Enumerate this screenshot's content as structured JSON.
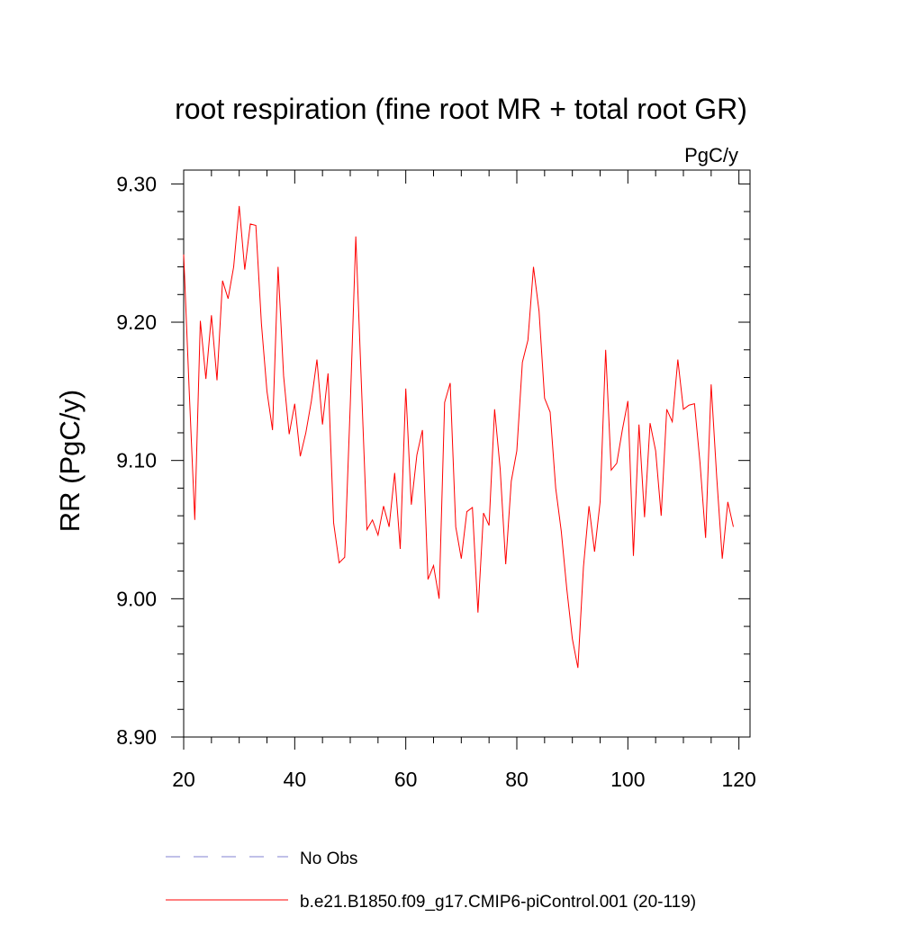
{
  "chart_data": {
    "type": "line",
    "title": "root respiration (fine root MR + total root GR)",
    "units_label": "PgC/y",
    "y_label": "RR  (PgC/y)",
    "x": [
      20,
      21,
      22,
      23,
      24,
      25,
      26,
      27,
      28,
      29,
      30,
      31,
      32,
      33,
      34,
      35,
      36,
      37,
      38,
      39,
      40,
      41,
      42,
      43,
      44,
      45,
      46,
      47,
      48,
      49,
      50,
      51,
      52,
      53,
      54,
      55,
      56,
      57,
      58,
      59,
      60,
      61,
      62,
      63,
      64,
      65,
      66,
      67,
      68,
      69,
      70,
      71,
      72,
      73,
      74,
      75,
      76,
      77,
      78,
      79,
      80,
      81,
      82,
      83,
      84,
      85,
      86,
      87,
      88,
      89,
      90,
      91,
      92,
      93,
      94,
      95,
      96,
      97,
      98,
      99,
      100,
      101,
      102,
      103,
      104,
      105,
      106,
      107,
      108,
      109,
      110,
      111,
      112,
      113,
      114,
      115,
      116,
      117,
      118,
      119
    ],
    "series": [
      {
        "name": "b.e21.B1850.f09_g17.CMIP6-piControl.001 (20-119)",
        "color": "#ff0000",
        "values": [
          9.249,
          9.15,
          9.057,
          9.201,
          9.159,
          9.205,
          9.158,
          9.23,
          9.217,
          9.24,
          9.284,
          9.238,
          9.271,
          9.27,
          9.199,
          9.15,
          9.122,
          9.24,
          9.161,
          9.119,
          9.141,
          9.103,
          9.12,
          9.143,
          9.173,
          9.126,
          9.163,
          9.055,
          9.026,
          9.03,
          9.14,
          9.262,
          9.156,
          9.05,
          9.057,
          9.046,
          9.067,
          9.052,
          9.091,
          9.036,
          9.152,
          9.068,
          9.104,
          9.122,
          9.014,
          9.024,
          9.0,
          9.142,
          9.156,
          9.052,
          9.029,
          9.063,
          9.066,
          8.99,
          9.062,
          9.053,
          9.137,
          9.094,
          9.025,
          9.085,
          9.107,
          9.171,
          9.187,
          9.24,
          9.208,
          9.145,
          9.135,
          9.08,
          9.049,
          9.007,
          8.971,
          8.95,
          9.023,
          9.067,
          9.034,
          9.07,
          9.18,
          9.093,
          9.098,
          9.122,
          9.143,
          9.031,
          9.126,
          9.059,
          9.127,
          9.107,
          9.06,
          9.137,
          9.128,
          9.173,
          9.137,
          9.14,
          9.141,
          9.098,
          9.044,
          9.155,
          9.088,
          9.029,
          9.07,
          9.052
        ]
      }
    ],
    "extra_legend": {
      "name": "No Obs",
      "color": "#8080d0",
      "style": "dashed"
    },
    "xlim": [
      20,
      122
    ],
    "ylim": [
      8.9,
      9.31
    ],
    "xticks": [
      20,
      40,
      60,
      80,
      100,
      120
    ],
    "yticks": [
      {
        "value": 8.9,
        "label": "8.90"
      },
      {
        "value": 9.0,
        "label": "9.00"
      },
      {
        "value": 9.1,
        "label": "9.10"
      },
      {
        "value": 9.2,
        "label": "9.20"
      },
      {
        "value": 9.3,
        "label": "9.30"
      }
    ],
    "x_minor_ticks": [
      25,
      30,
      35,
      45,
      50,
      55,
      65,
      70,
      75,
      85,
      90,
      95,
      105,
      110,
      115
    ],
    "y_minor_ticks": [
      8.92,
      8.94,
      8.96,
      8.98,
      9.02,
      9.04,
      9.06,
      9.08,
      9.12,
      9.14,
      9.16,
      9.18,
      9.22,
      9.24,
      9.26,
      9.28
    ]
  }
}
